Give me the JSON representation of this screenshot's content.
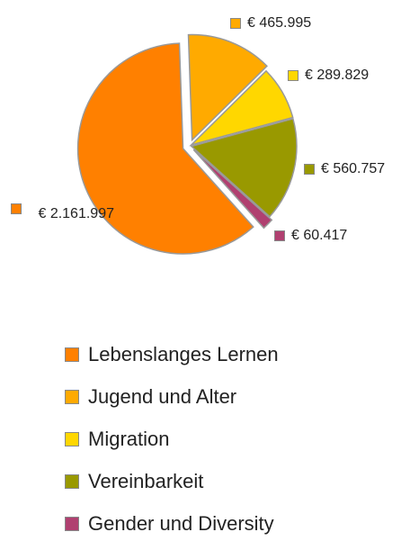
{
  "chart_data": {
    "type": "pie",
    "categories": [
      "Lebenslanges Lernen",
      "Jugend und Alter",
      "Migration",
      "Vereinbarkeit",
      "Gender und Diversity"
    ],
    "values": [
      2161997,
      465995,
      289829,
      560757,
      60417
    ],
    "value_labels": [
      "€ 2.161.997",
      "€ 465.995",
      "€ 289.829",
      "€ 560.757",
      "€ 60.417"
    ],
    "colors": [
      "#ff8000",
      "#ffaa00",
      "#ffd700",
      "#999900",
      "#b04070"
    ],
    "legend": "bottom"
  }
}
